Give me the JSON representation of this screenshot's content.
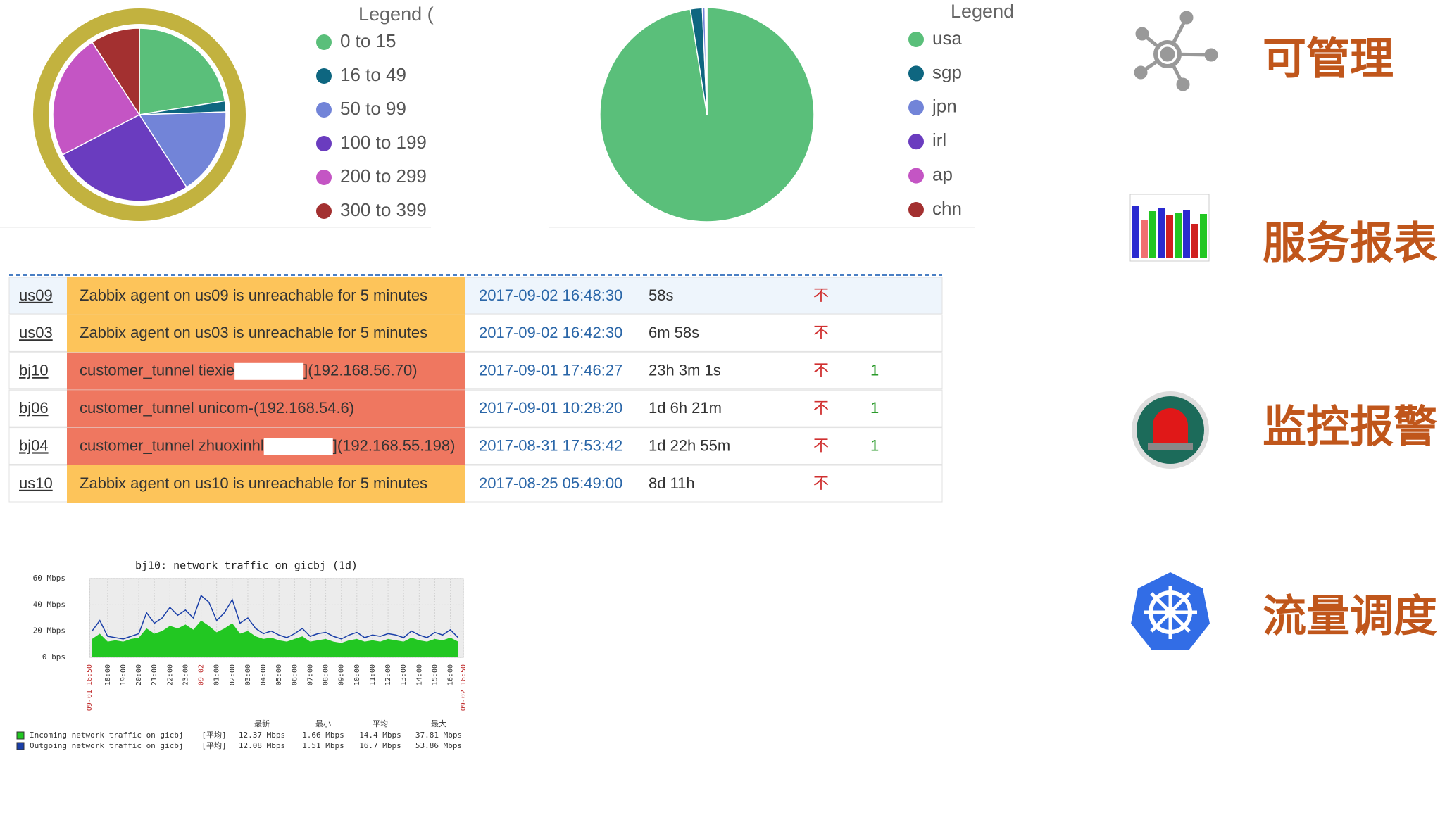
{
  "chart_data": [
    {
      "type": "pie",
      "legend_title": "Legend (",
      "categories": [
        "0 to 15",
        "16 to 49",
        "50 to 99",
        "100 to 199",
        "200 to 299",
        "300 to 399"
      ],
      "values": [
        22,
        2,
        16,
        26,
        23,
        9
      ],
      "colors": [
        "#5abf7a",
        "#0e6680",
        "#7284d8",
        "#6a3cbf",
        "#c455c4",
        "#a33030"
      ]
    },
    {
      "type": "pie",
      "legend_title": "Legend",
      "categories": [
        "usa",
        "sgp",
        "jpn",
        "irl",
        "ap",
        "chn"
      ],
      "values": [
        97.5,
        1.8,
        0.4,
        0.1,
        0.1,
        0.1
      ],
      "colors": [
        "#5abf7a",
        "#0e6680",
        "#7284d8",
        "#6a3cbf",
        "#c455c4",
        "#a33030"
      ]
    },
    {
      "type": "line",
      "title": "bj10: network traffic on gicbj (1d)",
      "xlim": [
        16.833,
        40.833
      ],
      "xticks": [
        {
          "value": 16.833,
          "label": "09-01 16:50"
        },
        {
          "value": 18,
          "label": "18:00"
        },
        {
          "value": 19,
          "label": "19:00"
        },
        {
          "value": 20,
          "label": "20:00"
        },
        {
          "value": 21,
          "label": "21:00"
        },
        {
          "value": 22,
          "label": "22:00"
        },
        {
          "value": 23,
          "label": "23:00"
        },
        {
          "value": 24,
          "label": "09-02"
        },
        {
          "value": 25,
          "label": "01:00"
        },
        {
          "value": 26,
          "label": "02:00"
        },
        {
          "value": 27,
          "label": "03:00"
        },
        {
          "value": 28,
          "label": "04:00"
        },
        {
          "value": 29,
          "label": "05:00"
        },
        {
          "value": 30,
          "label": "06:00"
        },
        {
          "value": 31,
          "label": "07:00"
        },
        {
          "value": 32,
          "label": "08:00"
        },
        {
          "value": 33,
          "label": "09:00"
        },
        {
          "value": 34,
          "label": "10:00"
        },
        {
          "value": 35,
          "label": "11:00"
        },
        {
          "value": 36,
          "label": "12:00"
        },
        {
          "value": 37,
          "label": "13:00"
        },
        {
          "value": 38,
          "label": "14:00"
        },
        {
          "value": 39,
          "label": "15:00"
        },
        {
          "value": 40,
          "label": "16:00"
        },
        {
          "value": 40.833,
          "label": "09-02 16:50"
        }
      ],
      "ylim": [
        0,
        60
      ],
      "yticks": [
        {
          "value": 0,
          "label": "0 bps"
        },
        {
          "value": 20,
          "label": "20 Mbps"
        },
        {
          "value": 40,
          "label": "40 Mbps"
        },
        {
          "value": 60,
          "label": "60 Mbps"
        }
      ],
      "grid": true,
      "x": [
        17,
        17.5,
        18,
        18.5,
        19,
        19.5,
        20,
        20.5,
        21,
        21.5,
        22,
        22.5,
        23,
        23.5,
        24,
        24.5,
        25,
        25.5,
        26,
        26.5,
        27,
        27.5,
        28,
        28.5,
        29,
        29.5,
        30,
        30.5,
        31,
        31.5,
        32,
        32.5,
        33,
        33.5,
        34,
        34.5,
        35,
        35.5,
        36,
        36.5,
        37,
        37.5,
        38,
        38.5,
        39,
        39.5,
        40,
        40.5
      ],
      "series": [
        {
          "name": "Incoming network traffic on gicbj",
          "color": "#22c722",
          "values": [
            14,
            18,
            12,
            13,
            12,
            14,
            15,
            22,
            18,
            20,
            24,
            22,
            25,
            21,
            28,
            24,
            19,
            22,
            26,
            18,
            20,
            16,
            14,
            15,
            13,
            12,
            14,
            16,
            12,
            13,
            14,
            12,
            11,
            13,
            14,
            12,
            13,
            12,
            14,
            13,
            12,
            15,
            13,
            12,
            14,
            13,
            15,
            12
          ]
        },
        {
          "name": "Outgoing network traffic on gicbj",
          "color": "#1a3fa8",
          "values": [
            20,
            28,
            16,
            15,
            14,
            16,
            18,
            34,
            26,
            30,
            38,
            32,
            36,
            30,
            47,
            42,
            28,
            34,
            44,
            26,
            30,
            22,
            18,
            20,
            17,
            15,
            18,
            22,
            16,
            18,
            19,
            16,
            14,
            17,
            19,
            15,
            17,
            16,
            18,
            17,
            15,
            20,
            17,
            15,
            19,
            17,
            21,
            15
          ]
        }
      ],
      "stats_header": [
        "最新",
        "最小",
        "平均",
        "最大"
      ],
      "stats_rows": [
        [
          "[平均]",
          "12.37 Mbps",
          "1.66 Mbps",
          "14.4 Mbps",
          "37.81 Mbps"
        ],
        [
          "[平均]",
          "12.08 Mbps",
          "1.51 Mbps",
          "16.7 Mbps",
          "53.86 Mbps"
        ]
      ]
    }
  ],
  "table": {
    "rows": [
      {
        "color": "#fdc45a",
        "cells": [
          "us09",
          "Zabbix agent on us09 is unreachable for 5 minutes",
          "2017-09-02 16:48:30",
          "58s",
          "不"
        ]
      },
      {
        "color": "#fdc45a",
        "cells": [
          "us03",
          "Zabbix agent on us03 is unreachable for 5 minutes",
          "2017-09-02 16:42:30",
          "6m 58s",
          "不"
        ]
      },
      {
        "color": "#ef7760",
        "cells": [
          "bj10",
          "customer_tunnel tiexie",
          "](192.168.56.70)",
          "2017-09-01 17:46:27",
          "23h 3m 1s",
          "不",
          "1"
        ]
      },
      {
        "color": "#ef7760",
        "cells": [
          "bj06",
          "customer_tunnel unicom-(192.168.54.6)",
          "2017-09-01 10:28:20",
          "1d 6h 21m",
          "不",
          "1"
        ]
      },
      {
        "color": "#ef7760",
        "cells": [
          "bj04",
          "customer_tunnel zhuoxinhl",
          "](192.168.55.198)",
          "2017-08-31 17:53:42",
          "1d 22h 55m",
          "不",
          "1"
        ]
      },
      {
        "color": "#fdc45a",
        "cells": [
          "us10",
          "Zabbix agent on us10 is unreachable for 5 minutes",
          "2017-08-25 05:49:00",
          "8d 11h",
          "不"
        ]
      }
    ]
  },
  "features": [
    "可管理",
    "服务报表",
    "监控报警",
    "流量调度"
  ]
}
